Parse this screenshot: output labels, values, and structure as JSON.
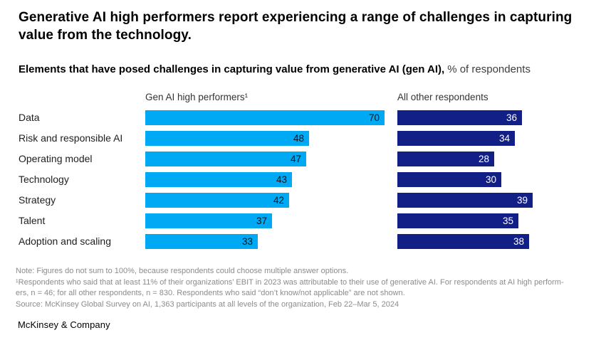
{
  "page": {
    "title": "Generative AI high performers report experiencing a range of challenges in capturing value from the technology.",
    "subtitle_bold": "Elements that have posed challenges in capturing value from generative AI (gen AI),",
    "subtitle_regular": "% of respondents",
    "brand": "McKinsey & Company"
  },
  "chart_data": {
    "type": "bar",
    "orientation": "horizontal",
    "unit": "% of respondents",
    "categories": [
      "Data",
      "Risk and responsible AI",
      "Operating model",
      "Technology",
      "Strategy",
      "Talent",
      "Adoption and scaling"
    ],
    "series": [
      {
        "name": "Gen AI high performers¹",
        "values": [
          70,
          48,
          47,
          43,
          42,
          37,
          33
        ],
        "color": "#00A9F4",
        "value_label_color": "#121212"
      },
      {
        "name": "All other respondents",
        "values": [
          36,
          34,
          28,
          30,
          39,
          35,
          38
        ],
        "color": "#121F87",
        "value_label_color": "#FFFFFF"
      }
    ],
    "value_labels": "inside-end",
    "axis": {
      "min": 0,
      "max": 70,
      "gridlines": false,
      "tick_labels_shown": false
    },
    "legend_position": "column-headers-above-bars"
  },
  "notes": [
    "Note: Figures do not sum to 100%, because respondents could choose multiple answer options.",
    "¹Respondents who said that at least 11% of their organizations’ EBIT in 2023 was attributable to their use of generative AI. For respondents at AI high perform-",
    "ers, n = 46; for all other respondents, n = 830. Respondents who said “don’t know/not applicable” are not shown.",
    "Source: McKinsey Global Survey on AI, 1,363 participants at all levels of the organization, Feb 22–Mar 5, 2024"
  ]
}
